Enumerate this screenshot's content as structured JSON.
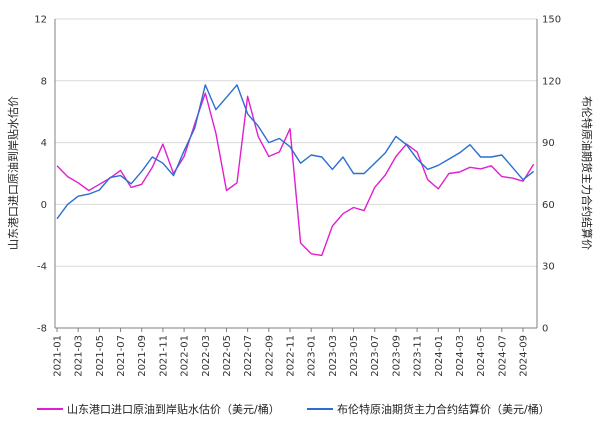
{
  "chart_data": {
    "type": "line",
    "y_left": {
      "label": "山东港口进口原油到岸贴水估价",
      "min": -8,
      "max": 12,
      "ticks": [
        "-8",
        "-4",
        "0",
        "4",
        "8",
        "12"
      ]
    },
    "y_right": {
      "label": "布伦特原油期货主力合约结算价",
      "min": 0,
      "max": 150,
      "ticks": [
        "0",
        "30",
        "60",
        "90",
        "120",
        "150"
      ]
    },
    "x_ticks": [
      "2021-01",
      "2021-03",
      "2021-05",
      "2021-07",
      "2021-09",
      "2021-11",
      "2022-01",
      "2022-03",
      "2022-05",
      "2022-07",
      "2022-09",
      "2022-11",
      "2023-01",
      "2023-03",
      "2023-05",
      "2023-07",
      "2023-09",
      "2023-11",
      "2024-01",
      "2024-03",
      "2024-05",
      "2024-07",
      "2024-09"
    ],
    "grid": "horizontal",
    "legend_position": "bottom",
    "colors": {
      "discount": "#e020d0",
      "brent": "#2a6fd0",
      "grid": "#d9d9d9",
      "axis": "#808080"
    },
    "series": [
      {
        "name": "山东港口进口原油到岸贴水估价（美元/桶）",
        "axis": "left",
        "color": "#e020d0",
        "x": [
          "2021-01",
          "2021-02",
          "2021-03",
          "2021-04",
          "2021-05",
          "2021-06",
          "2021-07",
          "2021-08",
          "2021-09",
          "2021-10",
          "2021-11",
          "2021-12",
          "2022-01",
          "2022-02",
          "2022-03",
          "2022-04",
          "2022-05",
          "2022-06",
          "2022-07",
          "2022-08",
          "2022-09",
          "2022-10",
          "2022-11",
          "2022-12",
          "2023-01",
          "2023-02",
          "2023-03",
          "2023-04",
          "2023-05",
          "2023-06",
          "2023-07",
          "2023-08",
          "2023-09",
          "2023-10",
          "2023-11",
          "2023-12",
          "2024-01",
          "2024-02",
          "2024-03",
          "2024-04",
          "2024-05",
          "2024-06",
          "2024-07",
          "2024-08",
          "2024-09",
          "2024-10"
        ],
        "values": [
          2.5,
          1.8,
          1.4,
          0.9,
          1.3,
          1.7,
          2.2,
          1.1,
          1.3,
          2.4,
          3.9,
          2.0,
          3.1,
          5.2,
          7.2,
          4.6,
          0.9,
          1.4,
          7.0,
          4.4,
          3.1,
          3.4,
          4.9,
          -2.5,
          -3.2,
          -3.3,
          -1.4,
          -0.6,
          -0.2,
          -0.4,
          1.1,
          1.9,
          3.1,
          3.9,
          3.4,
          1.6,
          1.0,
          2.0,
          2.1,
          2.4,
          2.3,
          2.5,
          1.8,
          1.7,
          1.5,
          2.6
        ]
      },
      {
        "name": "布伦特原油期货主力合约结算价（美元/桶）",
        "axis": "right",
        "color": "#2a6fd0",
        "x": [
          "2021-01",
          "2021-02",
          "2021-03",
          "2021-04",
          "2021-05",
          "2021-06",
          "2021-07",
          "2021-08",
          "2021-09",
          "2021-10",
          "2021-11",
          "2021-12",
          "2022-01",
          "2022-02",
          "2022-03",
          "2022-04",
          "2022-05",
          "2022-06",
          "2022-07",
          "2022-08",
          "2022-09",
          "2022-10",
          "2022-11",
          "2022-12",
          "2023-01",
          "2023-02",
          "2023-03",
          "2023-04",
          "2023-05",
          "2023-06",
          "2023-07",
          "2023-08",
          "2023-09",
          "2023-10",
          "2023-11",
          "2023-12",
          "2024-01",
          "2024-02",
          "2024-03",
          "2024-04",
          "2024-05",
          "2024-06",
          "2024-07",
          "2024-08",
          "2024-09",
          "2024-10"
        ],
        "values": [
          53,
          60,
          64,
          65,
          67,
          73,
          74,
          70,
          76,
          83,
          80,
          74,
          86,
          97,
          118,
          106,
          112,
          118,
          104,
          98,
          90,
          92,
          88,
          80,
          84,
          83,
          77,
          83,
          75,
          75,
          80,
          85,
          93,
          89,
          82,
          77,
          79,
          82,
          85,
          89,
          83,
          83,
          84,
          78,
          72,
          76
        ]
      }
    ]
  }
}
